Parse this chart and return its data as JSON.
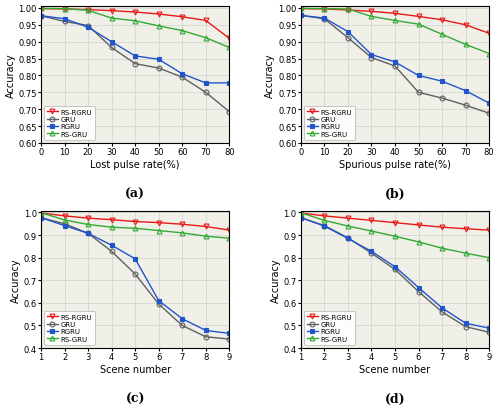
{
  "subplot_a": {
    "xlabel": "Lost pulse rate(%)",
    "ylabel": "Accuracy",
    "label": "(a)",
    "x": [
      0,
      10,
      20,
      30,
      40,
      50,
      60,
      70,
      80
    ],
    "RS_RGRU": [
      0.998,
      0.997,
      0.995,
      0.992,
      0.988,
      0.982,
      0.974,
      0.963,
      0.91
    ],
    "GRU": [
      0.977,
      0.96,
      0.948,
      0.883,
      0.835,
      0.822,
      0.795,
      0.75,
      0.693
    ],
    "RGRU": [
      0.977,
      0.968,
      0.943,
      0.9,
      0.858,
      0.848,
      0.805,
      0.778,
      0.778
    ],
    "RS_GRU": [
      0.999,
      0.998,
      0.993,
      0.97,
      0.962,
      0.947,
      0.933,
      0.912,
      0.883
    ],
    "xlim": [
      0,
      80
    ],
    "ylim": [
      0.6,
      1.005
    ],
    "yticks": [
      0.6,
      0.65,
      0.7,
      0.75,
      0.8,
      0.85,
      0.9,
      0.95,
      1.0
    ],
    "xticks": [
      0,
      10,
      20,
      30,
      40,
      50,
      60,
      70,
      80
    ]
  },
  "subplot_b": {
    "xlabel": "Spurious pulse rate(%)",
    "ylabel": "Accuracy",
    "label": "(b)",
    "x": [
      0,
      10,
      20,
      30,
      40,
      50,
      60,
      70,
      80
    ],
    "RS_RGRU": [
      0.998,
      0.997,
      0.994,
      0.99,
      0.984,
      0.975,
      0.965,
      0.95,
      0.925
    ],
    "GRU": [
      0.978,
      0.968,
      0.912,
      0.853,
      0.828,
      0.75,
      0.733,
      0.712,
      0.688
    ],
    "RGRU": [
      0.978,
      0.97,
      0.93,
      0.862,
      0.84,
      0.8,
      0.783,
      0.755,
      0.718
    ],
    "RS_GRU": [
      0.999,
      0.998,
      0.997,
      0.975,
      0.963,
      0.952,
      0.922,
      0.892,
      0.865
    ],
    "xlim": [
      0,
      80
    ],
    "ylim": [
      0.6,
      1.005
    ],
    "yticks": [
      0.6,
      0.65,
      0.7,
      0.75,
      0.8,
      0.85,
      0.9,
      0.95,
      1.0
    ],
    "xticks": [
      0,
      10,
      20,
      30,
      40,
      50,
      60,
      70,
      80
    ]
  },
  "subplot_c": {
    "xlabel": "Scene number",
    "ylabel": "Accuracy",
    "label": "(c)",
    "x": [
      1,
      2,
      3,
      4,
      5,
      6,
      7,
      8,
      9
    ],
    "RS_RGRU": [
      0.998,
      0.985,
      0.975,
      0.968,
      0.96,
      0.955,
      0.948,
      0.938,
      0.922
    ],
    "GRU": [
      0.977,
      0.95,
      0.908,
      0.828,
      0.728,
      0.595,
      0.5,
      0.45,
      0.44
    ],
    "RGRU": [
      0.977,
      0.942,
      0.908,
      0.855,
      0.795,
      0.61,
      0.53,
      0.478,
      0.465
    ],
    "RS_GRU": [
      0.999,
      0.967,
      0.947,
      0.935,
      0.93,
      0.92,
      0.91,
      0.895,
      0.886
    ],
    "xlim": [
      1,
      9
    ],
    "ylim": [
      0.4,
      1.005
    ],
    "yticks": [
      0.4,
      0.5,
      0.6,
      0.7,
      0.8,
      0.9,
      1.0
    ],
    "xticks": [
      1,
      2,
      3,
      4,
      5,
      6,
      7,
      8,
      9
    ]
  },
  "subplot_d": {
    "xlabel": "Scene number",
    "ylabel": "Accuracy",
    "label": "(d)",
    "x": [
      1,
      2,
      3,
      4,
      5,
      6,
      7,
      8,
      9
    ],
    "RS_RGRU": [
      0.998,
      0.985,
      0.975,
      0.965,
      0.955,
      0.945,
      0.935,
      0.928,
      0.922
    ],
    "GRU": [
      0.977,
      0.942,
      0.888,
      0.82,
      0.748,
      0.65,
      0.56,
      0.495,
      0.47
    ],
    "RGRU": [
      0.977,
      0.94,
      0.885,
      0.828,
      0.76,
      0.668,
      0.578,
      0.51,
      0.488
    ],
    "RS_GRU": [
      0.999,
      0.965,
      0.94,
      0.918,
      0.895,
      0.87,
      0.842,
      0.82,
      0.8
    ],
    "xlim": [
      1,
      9
    ],
    "ylim": [
      0.4,
      1.005
    ],
    "yticks": [
      0.4,
      0.5,
      0.6,
      0.7,
      0.8,
      0.9,
      1.0
    ],
    "xticks": [
      1,
      2,
      3,
      4,
      5,
      6,
      7,
      8,
      9
    ]
  },
  "colors": {
    "RS_RGRU": "#e8191a",
    "GRU": "#606060",
    "RGRU": "#2255cc",
    "RS_GRU": "#33aa33"
  },
  "markers": {
    "RS_RGRU": "v",
    "GRU": "o",
    "RGRU": "s",
    "RS_GRU": "^"
  },
  "markerfacecolors": {
    "RS_RGRU": "none",
    "GRU": "none",
    "RGRU": "#2255cc",
    "RS_GRU": "none"
  },
  "legend_labels": [
    "RS-RGRU",
    "GRU",
    "RGRU",
    "RS-GRU"
  ],
  "legend_keys": [
    "RS_RGRU",
    "GRU",
    "RGRU",
    "RS_GRU"
  ],
  "bg_color": "#f0f0e8"
}
